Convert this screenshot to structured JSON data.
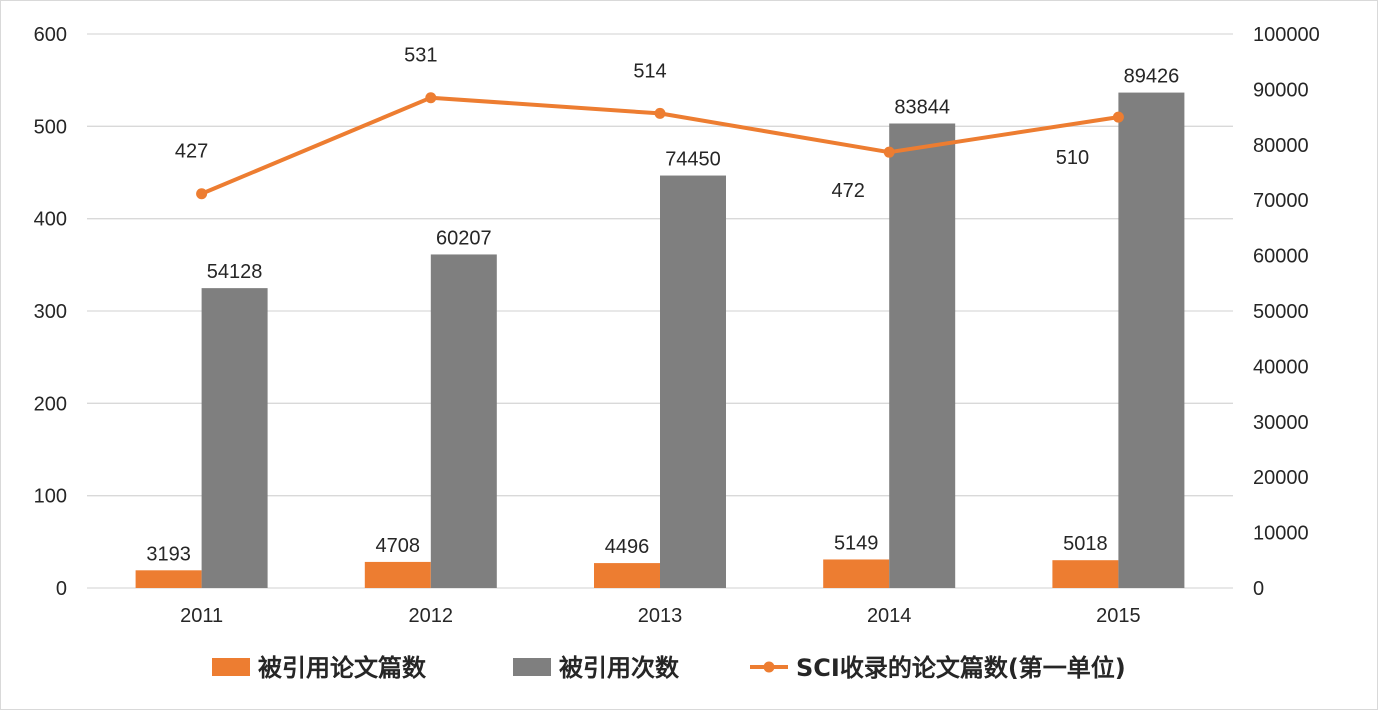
{
  "chart_data": {
    "type": "bar",
    "categories": [
      "2011",
      "2012",
      "2013",
      "2014",
      "2015"
    ],
    "series": [
      {
        "name": "被引用论文篇数",
        "kind": "bar",
        "axis": "right",
        "color": "#ed7d31",
        "values": [
          3193,
          4708,
          4496,
          5149,
          5018
        ],
        "labels": [
          "3193",
          "4708",
          "4496",
          "5149",
          "5018"
        ]
      },
      {
        "name": "被引用次数",
        "kind": "bar",
        "axis": "right",
        "color": "#7f7f7f",
        "values": [
          54128,
          60207,
          74450,
          83844,
          89426
        ],
        "labels": [
          "54128",
          "60207",
          "74450",
          "83844",
          "89426"
        ]
      },
      {
        "name": "SCI收录的论文篇数(第一单位)",
        "kind": "line",
        "axis": "left",
        "color": "#ed7d31",
        "values": [
          427,
          531,
          514,
          472,
          510
        ],
        "labels": [
          "427",
          "531",
          "514",
          "472",
          "510"
        ]
      }
    ],
    "y_left": {
      "min": 0,
      "max": 600,
      "ticks": [
        "0",
        "100",
        "200",
        "300",
        "400",
        "500",
        "600"
      ]
    },
    "y_right": {
      "min": 0,
      "max": 100000,
      "ticks": [
        "0",
        "10000",
        "20000",
        "30000",
        "40000",
        "50000",
        "60000",
        "70000",
        "80000",
        "90000",
        "100000"
      ]
    },
    "grid": true,
    "legend_position": "bottom",
    "gridline_color": "#d9d9d9"
  }
}
